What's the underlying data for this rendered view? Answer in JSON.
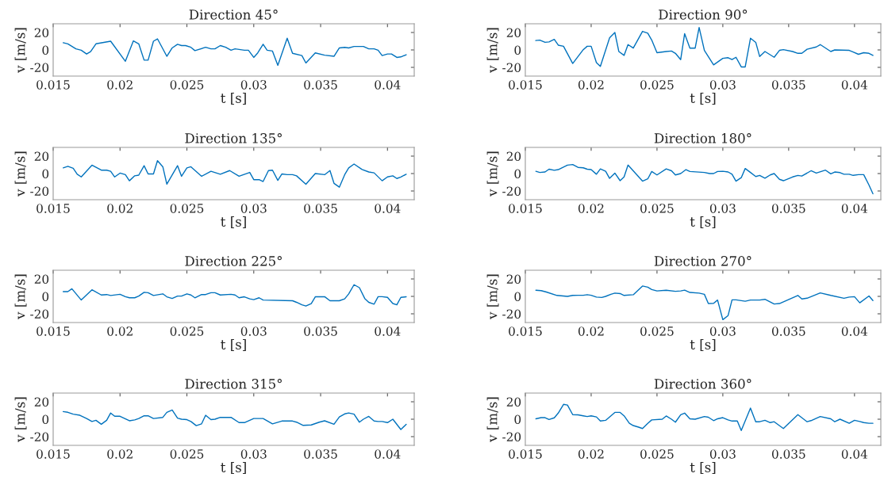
{
  "chart_data": [
    {
      "type": "line",
      "title": "Direction 45°",
      "xlabel": "t [s]",
      "ylabel": "v [m/s]",
      "xlim": [
        0.015,
        0.042
      ],
      "xticks": [
        0.015,
        0.02,
        0.025,
        0.03,
        0.035,
        0.04
      ],
      "ylim": [
        -30,
        30
      ],
      "yticks": [
        -20,
        0,
        20
      ],
      "grid": false,
      "line_style": "solid",
      "marker": "none",
      "series": [
        {
          "color": "#0072bd",
          "x": [
            0.01575,
            0.0161,
            0.0167,
            0.0171,
            0.0175,
            0.0178,
            0.0182,
            0.0193,
            0.0204,
            0.021,
            0.0214,
            0.0218,
            0.0221,
            0.0225,
            0.0228,
            0.0235,
            0.0239,
            0.0243,
            0.0246,
            0.0249,
            0.0253,
            0.0256,
            0.0264,
            0.0268,
            0.0271,
            0.0275,
            0.0279,
            0.0283,
            0.0286,
            0.0293,
            0.0296,
            0.03,
            0.0303,
            0.0307,
            0.031,
            0.0314,
            0.0318,
            0.0325,
            0.0329,
            0.0336,
            0.0339,
            0.0346,
            0.0353,
            0.036,
            0.0364,
            0.0368,
            0.0371,
            0.0375,
            0.0382,
            0.0386,
            0.039,
            0.0393,
            0.0396,
            0.04,
            0.0403,
            0.0407,
            0.041,
            0.0414
          ],
          "values": [
            8.3,
            7,
            1.3,
            -0.3,
            -4.7,
            -2,
            7,
            10,
            -13,
            10.4,
            7,
            -11.7,
            -11.7,
            10,
            12.7,
            -7.3,
            2.3,
            6.5,
            5,
            5,
            3,
            -0.8,
            3,
            1.3,
            1.3,
            5,
            3,
            -0.3,
            1.3,
            -0.3,
            -0.3,
            -8.6,
            -3.4,
            6.5,
            -0.3,
            -1.3,
            -17.7,
            13.5,
            -3.9,
            -6.5,
            -15,
            -3.4,
            -6,
            -7.3,
            2.3,
            3,
            2.3,
            4,
            4,
            1.3,
            1.3,
            -0.3,
            -6.5,
            -4.7,
            -4.7,
            -8.6,
            -8,
            -5.5
          ]
        }
      ]
    },
    {
      "type": "line",
      "title": "Direction 90°",
      "xlabel": "t [s]",
      "ylabel": "v [m/s]",
      "xlim": [
        0.015,
        0.042
      ],
      "xticks": [
        0.015,
        0.02,
        0.025,
        0.03,
        0.035,
        0.04
      ],
      "ylim": [
        -30,
        30
      ],
      "yticks": [
        -20,
        0,
        20
      ],
      "grid": false,
      "line_style": "solid",
      "marker": "none",
      "series": [
        {
          "color": "#0072bd",
          "x": [
            0.01579,
            0.0161,
            0.0165,
            0.0168,
            0.0172,
            0.0175,
            0.0179,
            0.0186,
            0.0194,
            0.0197,
            0.02,
            0.0204,
            0.0207,
            0.0214,
            0.0218,
            0.0221,
            0.0225,
            0.0228,
            0.0232,
            0.0239,
            0.0243,
            0.0246,
            0.025,
            0.0257,
            0.0261,
            0.0264,
            0.0268,
            0.0271,
            0.0275,
            0.0279,
            0.0282,
            0.0286,
            0.0293,
            0.03,
            0.0304,
            0.0307,
            0.031,
            0.0314,
            0.0317,
            0.0321,
            0.0325,
            0.0328,
            0.0332,
            0.0339,
            0.0343,
            0.0346,
            0.0353,
            0.0357,
            0.036,
            0.0364,
            0.0371,
            0.0374,
            0.0382,
            0.0385,
            0.0396,
            0.0399,
            0.0403,
            0.0407,
            0.0411,
            0.0414
          ],
          "values": [
            10.8,
            11.3,
            8.7,
            9.2,
            12.1,
            5.5,
            4.2,
            -15.5,
            0.3,
            4.2,
            4.2,
            -14.5,
            -18.9,
            13.9,
            20,
            -1.8,
            -6.3,
            6.1,
            2.1,
            21.3,
            19.2,
            11.3,
            -3.2,
            -1.8,
            -1.3,
            -3.9,
            -11.1,
            18.7,
            2.1,
            2.1,
            25.8,
            -0.5,
            -17.1,
            -9.7,
            -8.9,
            -11.1,
            -8.4,
            -19.5,
            -19.5,
            13.4,
            8.7,
            -7.6,
            -1.8,
            -8.4,
            -0.5,
            0.3,
            -1.8,
            -3.9,
            -3.9,
            0.8,
            3.4,
            6.1,
            -1.8,
            0,
            -0.5,
            -2.4,
            -5,
            -3.2,
            -3.9,
            -6.3
          ]
        }
      ]
    },
    {
      "type": "line",
      "title": "Direction 135°",
      "xlabel": "t [s]",
      "ylabel": "v [m/s]",
      "xlim": [
        0.015,
        0.042
      ],
      "xticks": [
        0.015,
        0.02,
        0.025,
        0.03,
        0.035,
        0.04
      ],
      "ylim": [
        -30,
        30
      ],
      "yticks": [
        -20,
        0,
        20
      ],
      "grid": false,
      "line_style": "solid",
      "marker": "none",
      "series": [
        {
          "color": "#0072bd",
          "x": [
            0.01575,
            0.0161,
            0.0165,
            0.0168,
            0.0171,
            0.0179,
            0.0186,
            0.019,
            0.0193,
            0.0196,
            0.02,
            0.0204,
            0.0207,
            0.0211,
            0.0214,
            0.0218,
            0.0221,
            0.0225,
            0.0228,
            0.0232,
            0.0235,
            0.0243,
            0.0246,
            0.025,
            0.0253,
            0.0261,
            0.0268,
            0.0275,
            0.0282,
            0.0289,
            0.0297,
            0.03,
            0.0304,
            0.0307,
            0.0311,
            0.0314,
            0.0318,
            0.0321,
            0.0325,
            0.0329,
            0.0332,
            0.0339,
            0.0346,
            0.0353,
            0.0357,
            0.036,
            0.0364,
            0.0368,
            0.0371,
            0.0375,
            0.0381,
            0.0386,
            0.039,
            0.0396,
            0.04,
            0.0404,
            0.0407,
            0.041,
            0.0414
          ],
          "values": [
            6.5,
            8.3,
            6,
            -0.8,
            -3.9,
            9.6,
            3.9,
            3.9,
            2.6,
            -3.9,
            0.5,
            -1.3,
            -8.3,
            -2.6,
            -1.8,
            9,
            -0.5,
            -0.5,
            14.8,
            7.8,
            -12.2,
            9,
            -3.1,
            6.5,
            7.8,
            -3.1,
            2.6,
            -0.8,
            3.4,
            -3.1,
            1.3,
            -7,
            -7,
            -9.1,
            3.4,
            3.9,
            -7.8,
            -0.5,
            -1.3,
            -1.3,
            -2.6,
            -12.2,
            0,
            -1.3,
            3.4,
            -11.2,
            -15.6,
            -1.3,
            6.5,
            10.9,
            4.7,
            1.8,
            0.8,
            -8.3,
            -3.9,
            -2.6,
            -5.7,
            -3.9,
            -0.8
          ]
        }
      ]
    },
    {
      "type": "line",
      "title": "Direction 180°",
      "xlabel": "t [s]",
      "ylabel": "v [m/s]",
      "xlim": [
        0.015,
        0.042
      ],
      "xticks": [
        0.015,
        0.02,
        0.025,
        0.03,
        0.035,
        0.04
      ],
      "ylim": [
        -30,
        30
      ],
      "yticks": [
        -20,
        0,
        20
      ],
      "grid": false,
      "line_style": "solid",
      "marker": "none",
      "series": [
        {
          "color": "#0072bd",
          "x": [
            0.0158,
            0.0161,
            0.0165,
            0.0168,
            0.0172,
            0.0175,
            0.0182,
            0.0186,
            0.019,
            0.0194,
            0.0197,
            0.02,
            0.0204,
            0.0207,
            0.0211,
            0.0214,
            0.0218,
            0.0222,
            0.0225,
            0.0228,
            0.0239,
            0.0243,
            0.0246,
            0.025,
            0.0257,
            0.0261,
            0.0264,
            0.0268,
            0.0272,
            0.0275,
            0.0286,
            0.029,
            0.0293,
            0.0296,
            0.03,
            0.0304,
            0.0307,
            0.031,
            0.0314,
            0.0317,
            0.0321,
            0.0325,
            0.0328,
            0.0332,
            0.0336,
            0.0339,
            0.0343,
            0.0346,
            0.0353,
            0.0357,
            0.036,
            0.0367,
            0.0371,
            0.0378,
            0.0382,
            0.0385,
            0.0389,
            0.0392,
            0.0396,
            0.0399,
            0.0403,
            0.0407,
            0.0411,
            0.0414
          ],
          "values": [
            2.6,
            1.3,
            1.8,
            5,
            3.7,
            4.5,
            9.7,
            10.3,
            7.1,
            6.6,
            5,
            4.5,
            -0.8,
            5.3,
            2.6,
            -5.5,
            0.5,
            -8.2,
            -3.9,
            9.7,
            -8.7,
            -6.1,
            2.4,
            -1.6,
            5.3,
            3.2,
            -1.6,
            0,
            4.5,
            2.4,
            1.3,
            0,
            0,
            2.4,
            2.6,
            1.8,
            -0.8,
            -8.7,
            -4.7,
            5.8,
            1.3,
            -3.4,
            -2.1,
            -5.3,
            -1.6,
            0,
            -6.6,
            -8.2,
            -3.9,
            -2.1,
            -2.9,
            3.2,
            0.5,
            3.9,
            -0.3,
            1.8,
            1.1,
            -0.8,
            -0.8,
            -2.1,
            -1.3,
            -1.3,
            -13.2,
            -23.2
          ]
        }
      ]
    },
    {
      "type": "line",
      "title": "Direction 225°",
      "xlabel": "t [s]",
      "ylabel": "v [m/s]",
      "xlim": [
        0.015,
        0.042
      ],
      "xticks": [
        0.015,
        0.02,
        0.025,
        0.03,
        0.035,
        0.04
      ],
      "ylim": [
        -30,
        30
      ],
      "yticks": [
        -20,
        0,
        20
      ],
      "grid": false,
      "line_style": "solid",
      "marker": "none",
      "series": [
        {
          "color": "#0072bd",
          "x": [
            0.01575,
            0.0161,
            0.0164,
            0.0171,
            0.0179,
            0.0186,
            0.019,
            0.0193,
            0.02,
            0.0204,
            0.0207,
            0.0211,
            0.0214,
            0.0218,
            0.0221,
            0.0225,
            0.0232,
            0.0235,
            0.0239,
            0.0243,
            0.0246,
            0.025,
            0.0253,
            0.0256,
            0.0261,
            0.0264,
            0.0268,
            0.0271,
            0.0275,
            0.0283,
            0.0286,
            0.0289,
            0.0293,
            0.0297,
            0.03,
            0.0304,
            0.0307,
            0.0329,
            0.0332,
            0.0336,
            0.0339,
            0.0343,
            0.0346,
            0.0353,
            0.0357,
            0.0364,
            0.0368,
            0.0371,
            0.0375,
            0.0379,
            0.0383,
            0.0386,
            0.039,
            0.0393,
            0.0396,
            0.04,
            0.0404,
            0.0407,
            0.041,
            0.0414
          ],
          "values": [
            5.5,
            5.5,
            8.7,
            -4.2,
            7.6,
            1.6,
            2.1,
            1,
            2.4,
            -0.3,
            -1.6,
            -1.6,
            0.3,
            4.7,
            4.2,
            1,
            2.9,
            -0.5,
            -2.4,
            0.3,
            0.3,
            2.9,
            1.6,
            -1.6,
            2.1,
            2.1,
            4.2,
            4.2,
            1.6,
            2.4,
            1.6,
            -1.6,
            -0.5,
            -2.9,
            -3.7,
            -1.6,
            -4.2,
            -5,
            -6.8,
            -9.7,
            -11.1,
            -8.2,
            -0.5,
            -0.3,
            -5,
            -5,
            -2.9,
            2.9,
            13.4,
            10,
            -2.4,
            -6.8,
            -8.9,
            -0.3,
            -0.3,
            -1.1,
            -8.2,
            -9.7,
            -1.1,
            -0.5
          ]
        }
      ]
    },
    {
      "type": "line",
      "title": "Direction 270°",
      "xlabel": "t [s]",
      "ylabel": "v [m/s]",
      "xlim": [
        0.015,
        0.042
      ],
      "xticks": [
        0.015,
        0.02,
        0.025,
        0.03,
        0.035,
        0.04
      ],
      "ylim": [
        -30,
        30
      ],
      "yticks": [
        -20,
        0,
        20
      ],
      "grid": false,
      "line_style": "solid",
      "marker": "none",
      "series": [
        {
          "color": "#0072bd",
          "x": [
            0.0158,
            0.0162,
            0.0166,
            0.0174,
            0.0182,
            0.0186,
            0.019,
            0.0194,
            0.0197,
            0.02,
            0.0204,
            0.0208,
            0.0211,
            0.0215,
            0.0218,
            0.0222,
            0.0225,
            0.0232,
            0.0239,
            0.0243,
            0.0246,
            0.025,
            0.0257,
            0.0264,
            0.0268,
            0.0271,
            0.0275,
            0.0282,
            0.0286,
            0.0289,
            0.0293,
            0.0296,
            0.03,
            0.0304,
            0.0307,
            0.031,
            0.0317,
            0.0321,
            0.0328,
            0.0332,
            0.0339,
            0.0343,
            0.0357,
            0.036,
            0.0364,
            0.0374,
            0.0382,
            0.0392,
            0.0396,
            0.04,
            0.0404,
            0.0411,
            0.0414
          ],
          "values": [
            7.1,
            6.6,
            5,
            1.1,
            0,
            1.1,
            1.3,
            1.3,
            1.9,
            1.3,
            -0.8,
            -1.3,
            0,
            2.4,
            3.7,
            3.2,
            1.1,
            1.9,
            11.9,
            10.6,
            7.9,
            6.3,
            7.1,
            5.8,
            6.3,
            7.1,
            4.5,
            3.7,
            2.4,
            -8.2,
            -7.9,
            -4.2,
            -26.7,
            -22,
            -4,
            -4,
            -5.6,
            -4.2,
            -4.2,
            -3.4,
            -8.7,
            -8.2,
            1.1,
            -2.9,
            -2.1,
            4,
            1.1,
            -2.1,
            -0.8,
            -0.3,
            -7.4,
            0.5,
            -4.8
          ]
        }
      ]
    },
    {
      "type": "line",
      "title": "Direction 315°",
      "xlabel": "t [s]",
      "ylabel": "v [m/s]",
      "xlim": [
        0.015,
        0.042
      ],
      "xticks": [
        0.015,
        0.02,
        0.025,
        0.03,
        0.035,
        0.04
      ],
      "ylim": [
        -30,
        30
      ],
      "yticks": [
        -20,
        0,
        20
      ],
      "grid": false,
      "line_style": "solid",
      "marker": "none",
      "series": [
        {
          "color": "#0072bd",
          "x": [
            0.01575,
            0.0161,
            0.0165,
            0.017,
            0.0175,
            0.0179,
            0.0182,
            0.0186,
            0.019,
            0.0193,
            0.0196,
            0.02,
            0.0207,
            0.0211,
            0.0214,
            0.0218,
            0.0221,
            0.0225,
            0.0232,
            0.0235,
            0.0239,
            0.0243,
            0.0246,
            0.025,
            0.0253,
            0.0257,
            0.0261,
            0.0264,
            0.0268,
            0.0271,
            0.0275,
            0.0283,
            0.0289,
            0.0293,
            0.03,
            0.0307,
            0.0314,
            0.0321,
            0.0329,
            0.0332,
            0.0337,
            0.0343,
            0.0349,
            0.0353,
            0.036,
            0.0364,
            0.0368,
            0.0371,
            0.0375,
            0.0379,
            0.0382,
            0.0386,
            0.039,
            0.0393,
            0.0396,
            0.04,
            0.0404,
            0.041,
            0.0414
          ],
          "values": [
            8.7,
            7.9,
            5.8,
            4.5,
            0.8,
            -2.6,
            -1.3,
            -5.8,
            -1.3,
            7.1,
            3.4,
            3.4,
            -1.8,
            -0.8,
            0.8,
            3.9,
            3.9,
            0.8,
            2.1,
            7.9,
            10.5,
            1.3,
            0,
            -0.5,
            -2.6,
            -7.4,
            -5.3,
            4.5,
            -0.5,
            0,
            2.1,
            2.1,
            -3.9,
            -3.9,
            0.8,
            0.8,
            -5.3,
            -2.1,
            -2.1,
            -3.4,
            -7.1,
            -6.6,
            -3.4,
            -1.8,
            -5.8,
            2.6,
            6.1,
            7.1,
            5.8,
            -3.4,
            0,
            3.2,
            -2.1,
            -2.6,
            -2.6,
            -3.9,
            0,
            -11.8,
            -5.8
          ]
        }
      ]
    },
    {
      "type": "line",
      "title": "Direction 360°",
      "xlabel": "t [s]",
      "ylabel": "v [m/s]",
      "xlim": [
        0.015,
        0.042
      ],
      "xticks": [
        0.015,
        0.02,
        0.025,
        0.03,
        0.035,
        0.04
      ],
      "ylim": [
        -30,
        30
      ],
      "yticks": [
        -20,
        0,
        20
      ],
      "grid": false,
      "line_style": "solid",
      "marker": "none",
      "series": [
        {
          "color": "#0072bd",
          "x": [
            0.0158,
            0.0162,
            0.0165,
            0.0168,
            0.0172,
            0.0175,
            0.0179,
            0.0182,
            0.0186,
            0.019,
            0.0194,
            0.0197,
            0.02,
            0.0204,
            0.0207,
            0.0211,
            0.0218,
            0.0222,
            0.0225,
            0.0229,
            0.0232,
            0.0236,
            0.0239,
            0.0243,
            0.0246,
            0.0254,
            0.0257,
            0.0261,
            0.0264,
            0.0268,
            0.0271,
            0.0275,
            0.0279,
            0.0286,
            0.0289,
            0.0293,
            0.0296,
            0.03,
            0.0304,
            0.0307,
            0.0311,
            0.0314,
            0.0321,
            0.0325,
            0.0328,
            0.0332,
            0.0336,
            0.0339,
            0.0346,
            0.0357,
            0.0364,
            0.0367,
            0.0374,
            0.0382,
            0.0385,
            0.0389,
            0.0396,
            0.04,
            0.0404,
            0.0407,
            0.0411,
            0.0414
          ],
          "values": [
            0.5,
            1.8,
            1.8,
            -0.3,
            1.6,
            7,
            17,
            16.2,
            5.2,
            5,
            3.9,
            3.1,
            3.9,
            2.6,
            -2.1,
            -1.3,
            7.8,
            7.8,
            3.9,
            -4.7,
            -7.3,
            -9.1,
            -10.7,
            -4.7,
            -0.8,
            0,
            3.7,
            0,
            -3.4,
            5.2,
            7,
            0.5,
            0,
            3.1,
            2.3,
            -1.6,
            0.5,
            1.8,
            -0.8,
            -2.1,
            -2.1,
            -13,
            12.8,
            -2.9,
            -2.9,
            -1.3,
            -3.9,
            -2.9,
            -10.7,
            5.2,
            -2.9,
            -1.6,
            3.1,
            0.5,
            -2.9,
            0,
            -4.7,
            -1.3,
            -2.6,
            -3.9,
            -4.7,
            -4.7
          ]
        }
      ]
    }
  ]
}
